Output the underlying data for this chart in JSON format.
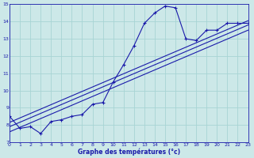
{
  "xlabel": "Graphe des températures (°c)",
  "xlim": [
    0,
    23
  ],
  "ylim": [
    7,
    15
  ],
  "yticks": [
    7,
    8,
    9,
    10,
    11,
    12,
    13,
    14,
    15
  ],
  "xticks": [
    0,
    1,
    2,
    3,
    4,
    5,
    6,
    7,
    8,
    9,
    10,
    11,
    12,
    13,
    14,
    15,
    16,
    17,
    18,
    19,
    20,
    21,
    22,
    23
  ],
  "bg_color": "#cce8e8",
  "grid_color": "#a8d4d4",
  "line_color": "#1a1aaa",
  "temp_data": [
    [
      0,
      8.5
    ],
    [
      1,
      7.8
    ],
    [
      2,
      7.9
    ],
    [
      3,
      7.5
    ],
    [
      4,
      8.2
    ],
    [
      5,
      8.3
    ],
    [
      6,
      8.5
    ],
    [
      7,
      8.6
    ],
    [
      8,
      9.2
    ],
    [
      9,
      9.3
    ],
    [
      10,
      10.5
    ],
    [
      11,
      11.5
    ],
    [
      12,
      12.6
    ],
    [
      13,
      13.9
    ],
    [
      14,
      14.5
    ],
    [
      15,
      14.9
    ],
    [
      16,
      14.8
    ],
    [
      17,
      13.0
    ],
    [
      18,
      12.9
    ],
    [
      19,
      13.5
    ],
    [
      20,
      13.5
    ],
    [
      21,
      13.9
    ],
    [
      22,
      13.9
    ],
    [
      23,
      13.9
    ]
  ],
  "reg_lines": [
    [
      [
        0,
        7.6
      ],
      [
        23,
        13.5
      ]
    ],
    [
      [
        0,
        7.9
      ],
      [
        23,
        13.8
      ]
    ],
    [
      [
        0,
        8.15
      ],
      [
        23,
        14.05
      ]
    ]
  ]
}
